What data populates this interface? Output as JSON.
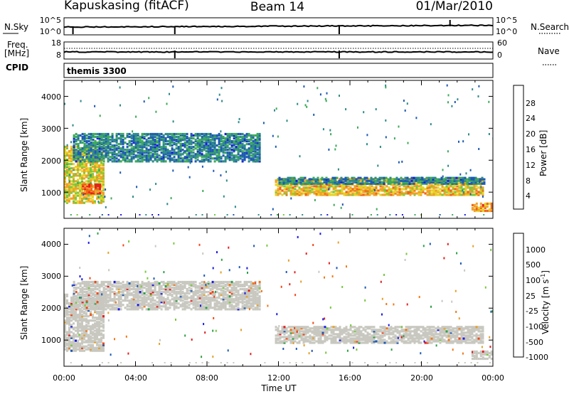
{
  "header": {
    "station": "Kapuskasing (fitACF)",
    "beam": "Beam 14",
    "date": "01/Mar/2010"
  },
  "param_panels": {
    "nsky_label": "N.Sky",
    "nsearch_label": "N.Search",
    "freq_label": "Freq.",
    "freq_units": "[MHz]",
    "nave_label": "Nave",
    "cpid_label": "CPID",
    "noise_ticks_left": [
      "10^5",
      "10^0"
    ],
    "noise_ticks_right": [
      "10^5",
      "10^0"
    ],
    "freq_ticks_left": [
      "18",
      "8"
    ],
    "nave_ticks_right": [
      "60",
      "0"
    ],
    "cpid_text": "themis 3300"
  },
  "colors": {
    "frame": "#000000",
    "echo_gray": "#c8c8c0",
    "power_scale": [
      "#1a1ae6",
      "#1e5ab4",
      "#2e8a8a",
      "#3caa5a",
      "#78c83c",
      "#e6d228",
      "#f0a028",
      "#f06414",
      "#e61e1e"
    ],
    "velocity_scale": [
      "#1a1ae6",
      "#1e5ab4",
      "#2ea046",
      "#78c83c",
      "#c8c8c0",
      "#e6a028",
      "#f07814",
      "#f04614",
      "#e61e1e"
    ]
  },
  "chart_data": [
    {
      "type": "heatmap",
      "name": "power",
      "xlabel": "Time UT",
      "ylabel": "Slant Range [km]",
      "x_ticks": [
        "00:00",
        "04:00",
        "08:00",
        "12:00",
        "16:00",
        "20:00",
        "00:00"
      ],
      "y_ticks": [
        1000,
        2000,
        3000,
        4000
      ],
      "xlim_hours": [
        0,
        24
      ],
      "ylim_km": [
        180,
        4500
      ],
      "colorbar_label": "Power [dB]",
      "colorbar_ticks": [
        4,
        8,
        12,
        16,
        20,
        24,
        28
      ],
      "colorbar_range": [
        0,
        30
      ],
      "echo_regions": [
        {
          "t0": 0.0,
          "t1": 2.2,
          "r0": 700,
          "r1": 2500,
          "power": 18
        },
        {
          "t0": 0.5,
          "t1": 11.0,
          "r0": 2000,
          "r1": 2900,
          "power": 8
        },
        {
          "t0": 1.0,
          "t1": 2.0,
          "r0": 1000,
          "r1": 1300,
          "power": 26
        },
        {
          "t0": 11.8,
          "t1": 23.5,
          "r0": 950,
          "r1": 1450,
          "power": 20
        },
        {
          "t0": 12.0,
          "t1": 23.5,
          "r0": 1300,
          "r1": 1500,
          "power": 8
        },
        {
          "t0": 22.8,
          "t1": 24.0,
          "r0": 450,
          "r1": 700,
          "power": 22
        }
      ]
    },
    {
      "type": "heatmap",
      "name": "velocity",
      "xlabel": "Time UT",
      "ylabel": "Slant Range [km]",
      "x_ticks": [
        "00:00",
        "04:00",
        "08:00",
        "12:00",
        "16:00",
        "20:00",
        "00:00"
      ],
      "y_ticks": [
        1000,
        2000,
        3000,
        4000
      ],
      "xlim_hours": [
        0,
        24
      ],
      "ylim_km": [
        180,
        4500
      ],
      "colorbar_label": "Velocity [m s^-1]",
      "colorbar_ticks": [
        "1000",
        "500",
        "100",
        "25",
        "-25",
        "-100",
        "-500",
        "-1000"
      ],
      "echo_regions": [
        {
          "t0": 0.0,
          "t1": 2.2,
          "r0": 700,
          "r1": 2500,
          "velocity": 0
        },
        {
          "t0": 0.5,
          "t1": 11.0,
          "r0": 2000,
          "r1": 2900,
          "velocity": 0
        },
        {
          "t0": 11.8,
          "t1": 23.5,
          "r0": 950,
          "r1": 1450,
          "velocity": 0
        },
        {
          "t0": 22.8,
          "t1": 24.0,
          "r0": 450,
          "r1": 700,
          "velocity": 0
        }
      ]
    }
  ]
}
